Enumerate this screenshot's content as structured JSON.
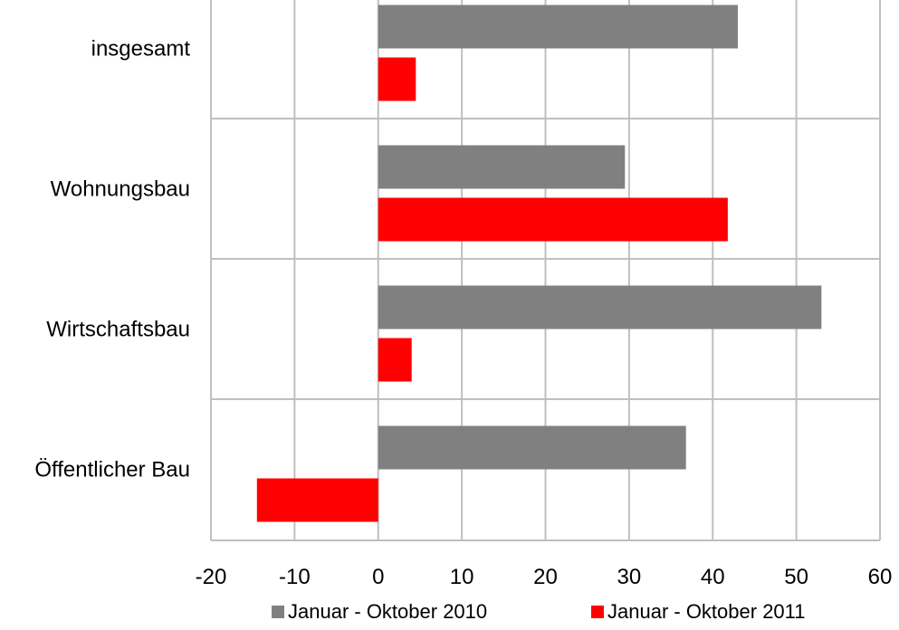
{
  "chart_data": {
    "type": "bar",
    "orientation": "horizontal",
    "title": "",
    "xlabel": "",
    "ylabel": "",
    "categories": [
      "insgesamt",
      "Wohnungsbau",
      "Wirtschaftsbau",
      "Öffentlicher Bau"
    ],
    "series": [
      {
        "name": "Januar - Oktober 2010",
        "color": "#808080",
        "values": [
          43,
          29.5,
          53,
          36.8
        ]
      },
      {
        "name": "Januar - Oktober 2011",
        "color": "#ff0000",
        "values": [
          4.5,
          41.8,
          4,
          -14.5
        ]
      }
    ],
    "xlim": [
      -20,
      60
    ],
    "xticks": [
      -20,
      -10,
      0,
      10,
      20,
      30,
      40,
      50,
      60
    ],
    "xtick_labels": [
      "-20",
      "-10",
      "0",
      "10",
      "20",
      "30",
      "40",
      "50",
      "60"
    ],
    "grid": true,
    "legend_position": "bottom"
  }
}
